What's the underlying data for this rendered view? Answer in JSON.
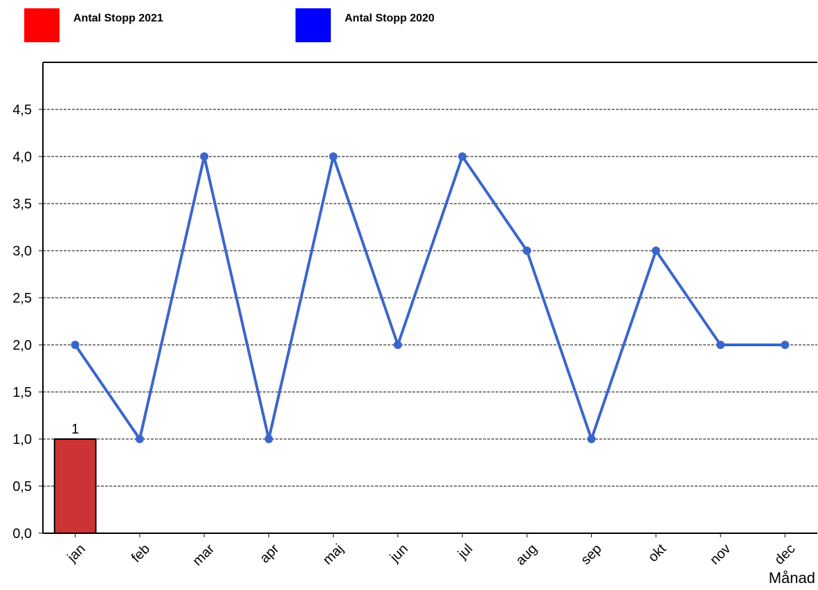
{
  "legend": [
    {
      "label": "Antal Stopp 2021",
      "color": "#ff0000"
    },
    {
      "label": "Antal Stopp 2020",
      "color": "#0000ff"
    }
  ],
  "chart_data": {
    "type": "bar",
    "title": "",
    "xlabel": "Månad",
    "ylabel": "",
    "ylim": [
      0,
      5
    ],
    "yticks": [
      "0,0",
      "0,5",
      "1,0",
      "1,5",
      "2,0",
      "2,5",
      "3,0",
      "3,5",
      "4,0",
      "4,5"
    ],
    "ytick_values": [
      0,
      0.5,
      1,
      1.5,
      2,
      2.5,
      3,
      3.5,
      4,
      4.5
    ],
    "grid": true,
    "legend_position": "top",
    "categories": [
      "jan",
      "feb",
      "mar",
      "apr",
      "maj",
      "jun",
      "jul",
      "aug",
      "sep",
      "okt",
      "nov",
      "dec"
    ],
    "series": [
      {
        "name": "Antal Stopp 2021",
        "type": "bar",
        "color": "#cc3333",
        "values": [
          1,
          null,
          null,
          null,
          null,
          null,
          null,
          null,
          null,
          null,
          null,
          null
        ],
        "data_labels": [
          "1",
          null,
          null,
          null,
          null,
          null,
          null,
          null,
          null,
          null,
          null,
          null
        ]
      },
      {
        "name": "Antal Stopp 2020",
        "type": "line",
        "color": "#3a66cc",
        "values": [
          2,
          1,
          4,
          1,
          4,
          2,
          4,
          3,
          1,
          3,
          2,
          2
        ]
      }
    ]
  }
}
